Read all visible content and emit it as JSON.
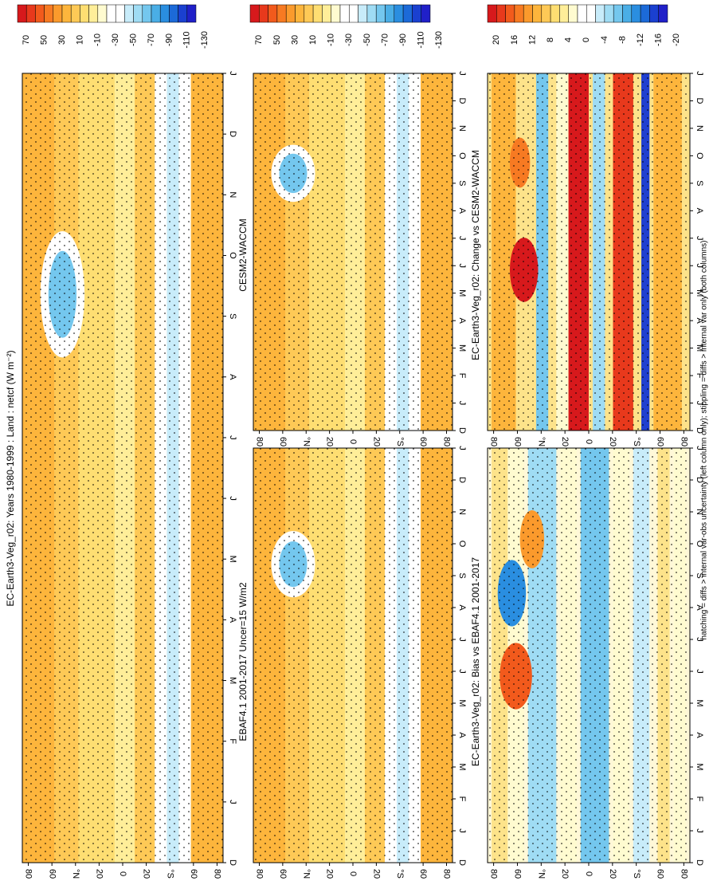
{
  "figure": {
    "footnote": "hatching = diffs > internal var-obs uncertainty (left column only); stippling = diffs > internal var only (both columns)"
  },
  "chart_data": [
    {
      "type": "heatmap",
      "id": "ec_1980_1999_left",
      "title": "EC-Earth3-Veg_r02: Years 1980-1999 : Land : netcf (W m⁻²)",
      "xlabel": "",
      "ylabel": "",
      "x_ticks": [
        "D",
        "J",
        "F",
        "M",
        "A",
        "M",
        "J",
        "J",
        "A",
        "S",
        "O",
        "N",
        "D",
        "J"
      ],
      "y_ticks": [
        "80",
        "60",
        "°N",
        "20",
        "0",
        "20",
        "°S",
        "60",
        "80"
      ],
      "colorbar": {
        "ticks": [
          "70",
          "50",
          "30",
          "10",
          "-10",
          "-30",
          "-50",
          "-70",
          "-90",
          "-110",
          "-130"
        ],
        "colors": [
          "#d7191c",
          "#e8391c",
          "#f25a1c",
          "#f77a22",
          "#fb9a2c",
          "#fdb53c",
          "#fec956",
          "#fede72",
          "#ffee99",
          "#fffbd0",
          "#ffffff",
          "#ffffff",
          "#c8ecfa",
          "#9fdcf4",
          "#74c7ee",
          "#4aaee6",
          "#2a8ee0",
          "#1c6ad8",
          "#1a40d0",
          "#2020c8"
        ]
      }
    },
    {
      "type": "heatmap",
      "id": "ec_1980_1999_right",
      "title": "EC-Earth3-Veg_r02: Years 1980-1999 : Land : netcf (W m⁻²)",
      "x_ticks": [
        "D",
        "J",
        "F",
        "M",
        "A",
        "M",
        "J",
        "J",
        "A",
        "S",
        "O",
        "N",
        "D",
        "J"
      ],
      "y_ticks": [
        "80",
        "60",
        "°N",
        "20",
        "0",
        "20",
        "°S",
        "60",
        "80"
      ],
      "colorbar": {
        "ticks": [
          "70",
          "50",
          "30",
          "10",
          "-10",
          "-30",
          "-50",
          "-70",
          "-90",
          "-110",
          "-130"
        ]
      }
    },
    {
      "type": "heatmap",
      "id": "ebaf",
      "title": "EBAF4.1 2001-2017 Uncer=15 W/m2",
      "x_ticks": [
        "D",
        "J",
        "F",
        "M",
        "A",
        "M",
        "J",
        "J",
        "A",
        "S",
        "O",
        "N",
        "D",
        "J"
      ],
      "y_ticks": [
        "80",
        "60",
        "°N",
        "20",
        "0",
        "20",
        "°S",
        "60",
        "80"
      ],
      "colorbar": {
        "ticks": [
          "70",
          "50",
          "30",
          "10",
          "-10",
          "-30",
          "-50",
          "-70",
          "-90",
          "-110",
          "-130"
        ]
      }
    },
    {
      "type": "heatmap",
      "id": "cesm",
      "title": "CESM2-WACCM",
      "x_ticks": [
        "D",
        "J",
        "F",
        "M",
        "A",
        "M",
        "J",
        "J",
        "A",
        "S",
        "O",
        "N",
        "D",
        "J"
      ],
      "y_ticks": [
        "80",
        "60",
        "°N",
        "20",
        "0",
        "20",
        "°S",
        "60",
        "80"
      ],
      "colorbar": {
        "ticks": [
          "70",
          "50",
          "30",
          "10",
          "-10",
          "-30",
          "-50",
          "-70",
          "-90",
          "-110",
          "-130"
        ]
      }
    },
    {
      "type": "heatmap",
      "id": "bias",
      "title": "EC-Earth3-Veg_r02: Bias vs EBAF4.1 2001-2017",
      "x_ticks": [
        "D",
        "J",
        "F",
        "M",
        "A",
        "M",
        "J",
        "J",
        "A",
        "S",
        "O",
        "N",
        "D",
        "J"
      ],
      "y_ticks": [
        "80",
        "60",
        "°N",
        "20",
        "0",
        "20",
        "°S",
        "60",
        "80"
      ],
      "colorbar": {
        "ticks": [
          "20",
          "16",
          "12",
          "8",
          "4",
          "0",
          "-4",
          "-8",
          "-12",
          "-16",
          "-20"
        ]
      }
    },
    {
      "type": "heatmap",
      "id": "change",
      "title": "EC-Earth3-Veg_r02: Change vs CESM2-WACCM",
      "x_ticks": [
        "D",
        "J",
        "F",
        "M",
        "A",
        "M",
        "J",
        "J",
        "A",
        "S",
        "O",
        "N",
        "D",
        "J"
      ],
      "y_ticks": [
        "80",
        "60",
        "°N",
        "20",
        "0",
        "20",
        "°S",
        "60",
        "80"
      ],
      "colorbar": {
        "ticks": [
          "20",
          "16",
          "12",
          "8",
          "4",
          "0",
          "-4",
          "-8",
          "-12",
          "-16",
          "-20"
        ]
      }
    }
  ]
}
